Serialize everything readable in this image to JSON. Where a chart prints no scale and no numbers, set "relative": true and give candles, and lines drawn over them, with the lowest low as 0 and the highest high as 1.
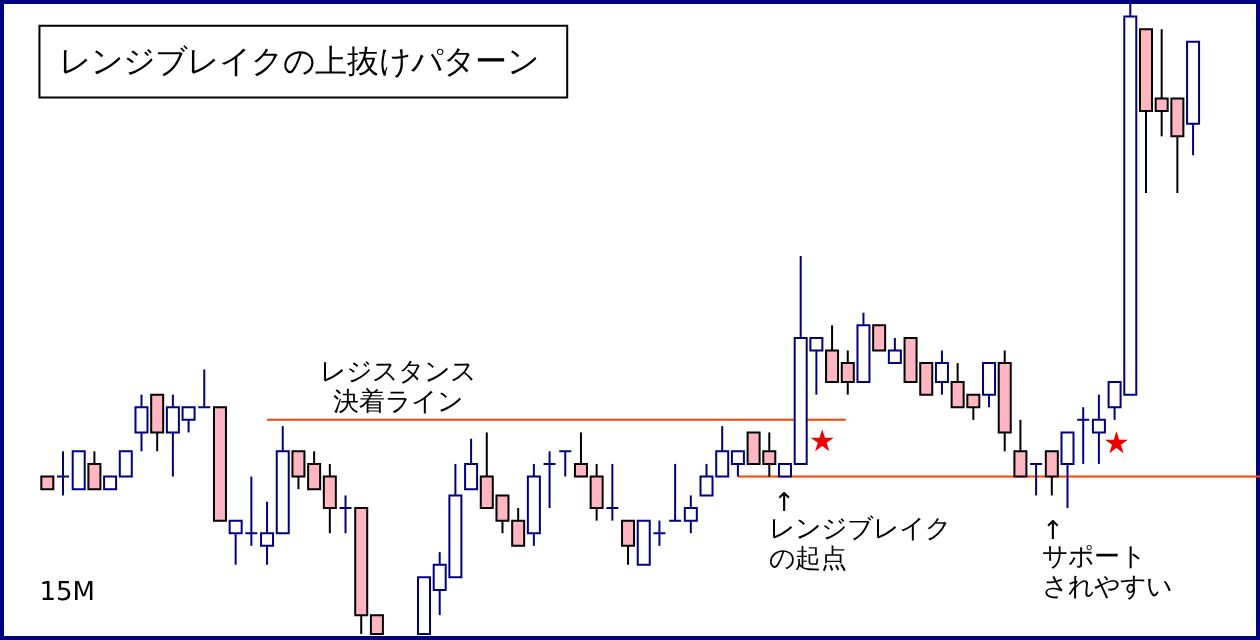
{
  "chart_data": {
    "type": "candlestick",
    "title": "レンジブレイクの上抜けパターン",
    "relative": true,
    "categories": [
      null,
      null,
      null,
      null,
      null,
      null,
      null,
      null,
      null,
      null,
      null,
      null,
      null,
      null,
      null,
      null,
      null,
      null,
      null,
      null,
      null,
      null,
      null,
      null,
      null,
      null,
      null,
      null,
      null,
      null,
      null,
      null,
      null,
      null,
      null,
      null,
      null,
      null,
      null,
      null,
      null,
      null,
      null,
      null,
      null,
      null,
      null,
      null,
      null,
      null,
      null,
      null,
      null,
      null,
      null,
      null,
      null,
      null,
      null,
      null,
      null,
      null,
      null,
      null,
      null,
      null,
      null,
      null,
      null,
      null,
      null,
      null,
      null,
      null
    ],
    "ohlc": [
      [
        0.25,
        0.25,
        0.23,
        0.23
      ],
      [
        0.25,
        0.29,
        0.22,
        0.25
      ],
      [
        0.23,
        0.29,
        0.23,
        0.29
      ],
      [
        0.27,
        0.29,
        0.23,
        0.23
      ],
      [
        0.23,
        0.25,
        0.23,
        0.25
      ],
      [
        0.25,
        0.29,
        0.25,
        0.29
      ],
      [
        0.32,
        0.38,
        0.29,
        0.36
      ],
      [
        0.38,
        0.38,
        0.29,
        0.32
      ],
      [
        0.32,
        0.38,
        0.25,
        0.36
      ],
      [
        0.34,
        0.36,
        0.32,
        0.36
      ],
      [
        0.36,
        0.42,
        0.36,
        0.36
      ],
      [
        0.36,
        0.36,
        0.18,
        0.18
      ],
      [
        0.16,
        0.18,
        0.11,
        0.18
      ],
      [
        0.16,
        0.25,
        0.14,
        0.16
      ],
      [
        0.14,
        0.21,
        0.11,
        0.16
      ],
      [
        0.16,
        0.33,
        0.16,
        0.29
      ],
      [
        0.29,
        0.29,
        0.23,
        0.25
      ],
      [
        0.27,
        0.29,
        0.23,
        0.23
      ],
      [
        0.25,
        0.27,
        0.16,
        0.2
      ],
      [
        0.2,
        0.22,
        0.16,
        0.2
      ],
      [
        0.2,
        0.2,
        0.0,
        0.03
      ],
      [
        0.03,
        0.03,
        0.0,
        0.0
      ],
      null,
      null,
      [
        0.0,
        0.09,
        0.0,
        0.09
      ],
      [
        0.07,
        0.13,
        0.03,
        0.11
      ],
      [
        0.09,
        0.27,
        0.09,
        0.22
      ],
      [
        0.23,
        0.31,
        0.23,
        0.27
      ],
      [
        0.25,
        0.32,
        0.2,
        0.2
      ],
      [
        0.22,
        0.22,
        0.16,
        0.18
      ],
      [
        0.18,
        0.2,
        0.14,
        0.14
      ],
      [
        0.16,
        0.27,
        0.14,
        0.25
      ],
      [
        0.27,
        0.29,
        0.2,
        0.27
      ],
      [
        0.29,
        0.29,
        0.25,
        0.29
      ],
      [
        0.27,
        0.32,
        0.25,
        0.25
      ],
      [
        0.25,
        0.27,
        0.18,
        0.2
      ],
      [
        0.2,
        0.27,
        0.18,
        0.2
      ],
      [
        0.18,
        0.18,
        0.11,
        0.14
      ],
      [
        0.11,
        0.18,
        0.11,
        0.18
      ],
      [
        0.16,
        0.18,
        0.14,
        0.16
      ],
      [
        0.18,
        0.27,
        0.18,
        0.18
      ],
      [
        0.18,
        0.22,
        0.16,
        0.2
      ],
      [
        0.22,
        0.27,
        0.22,
        0.25
      ],
      [
        0.25,
        0.33,
        0.25,
        0.29
      ],
      [
        0.27,
        0.29,
        0.25,
        0.29
      ],
      [
        0.32,
        0.32,
        0.27,
        0.27
      ],
      [
        0.29,
        0.32,
        0.25,
        0.27
      ],
      [
        0.25,
        0.27,
        0.25,
        0.27
      ],
      [
        0.27,
        0.6,
        0.27,
        0.47
      ],
      [
        0.45,
        0.47,
        0.38,
        0.47
      ],
      [
        0.45,
        0.49,
        0.4,
        0.4
      ],
      [
        0.43,
        0.45,
        0.38,
        0.4
      ],
      [
        0.4,
        0.51,
        0.4,
        0.49
      ],
      [
        0.49,
        0.49,
        0.45,
        0.45
      ],
      [
        0.43,
        0.47,
        0.43,
        0.45
      ],
      [
        0.47,
        0.47,
        0.4,
        0.4
      ],
      [
        0.43,
        0.43,
        0.38,
        0.38
      ],
      [
        0.4,
        0.45,
        0.38,
        0.43
      ],
      [
        0.4,
        0.43,
        0.36,
        0.36
      ],
      [
        0.38,
        0.38,
        0.34,
        0.36
      ],
      [
        0.38,
        0.43,
        0.36,
        0.43
      ],
      [
        0.43,
        0.45,
        0.29,
        0.32
      ],
      [
        0.29,
        0.34,
        0.25,
        0.25
      ],
      [
        0.27,
        0.27,
        0.22,
        0.27
      ],
      [
        0.29,
        0.29,
        0.22,
        0.25
      ],
      [
        0.27,
        0.32,
        0.2,
        0.32
      ],
      [
        0.34,
        0.36,
        0.27,
        0.34
      ],
      [
        0.32,
        0.38,
        0.27,
        0.34
      ],
      [
        0.36,
        0.4,
        0.34,
        0.4
      ],
      [
        0.38,
        1.0,
        0.38,
        0.98
      ],
      [
        0.96,
        0.96,
        0.7,
        0.83
      ],
      [
        0.85,
        0.96,
        0.79,
        0.83
      ],
      [
        0.85,
        0.85,
        0.7,
        0.79
      ],
      [
        0.81,
        0.94,
        0.76,
        0.94
      ]
    ],
    "colors": [
      "#ffb6c1",
      "#000080",
      "#000080",
      "#ffb6c1",
      "#000080",
      "#000080",
      "#000080",
      "#ffb6c1",
      "#000080",
      "#000080",
      "#000080",
      "#ffb6c1",
      "#000080",
      "#000080",
      "#000080",
      "#000080",
      "#ffb6c1",
      "#ffb6c1",
      "#ffb6c1",
      "#000080",
      "#ffb6c1",
      "#ffb6c1",
      null,
      null,
      "#000080",
      "#000080",
      "#000080",
      "#000080",
      "#ffb6c1",
      "#ffb6c1",
      "#ffb6c1",
      "#000080",
      "#000080",
      "#000080",
      "#ffb6c1",
      "#ffb6c1",
      "#000080",
      "#ffb6c1",
      "#000080",
      "#000080",
      "#000080",
      "#000080",
      "#000080",
      "#000080",
      "#000080",
      "#ffb6c1",
      "#ffb6c1",
      "#000080",
      "#000080",
      "#000080",
      "#ffb6c1",
      "#ffb6c1",
      "#000080",
      "#ffb6c1",
      "#000080",
      "#ffb6c1",
      "#ffb6c1",
      "#000080",
      "#ffb6c1",
      "#ffb6c1",
      "#000080",
      "#ffb6c1",
      "#ffb6c1",
      "#000080",
      "#ffb6c1",
      "#000080",
      "#000080",
      "#000080",
      "#000080",
      "#000080",
      "#ffb6c1",
      "#ffb6c1",
      "#ffb6c1",
      "#000080"
    ],
    "ref_lines": [
      {
        "axis": "y",
        "value": 0.34,
        "label": "レジスタンス決着ライン",
        "color": "#ff4000"
      },
      {
        "axis": "y",
        "value": 0.25,
        "label": null,
        "color": "#ff4000"
      }
    ],
    "annotations": [
      "↑",
      "レンジブレイクの起点",
      "↑",
      "サポートされやすい",
      "15M",
      "★",
      "★"
    ]
  }
}
